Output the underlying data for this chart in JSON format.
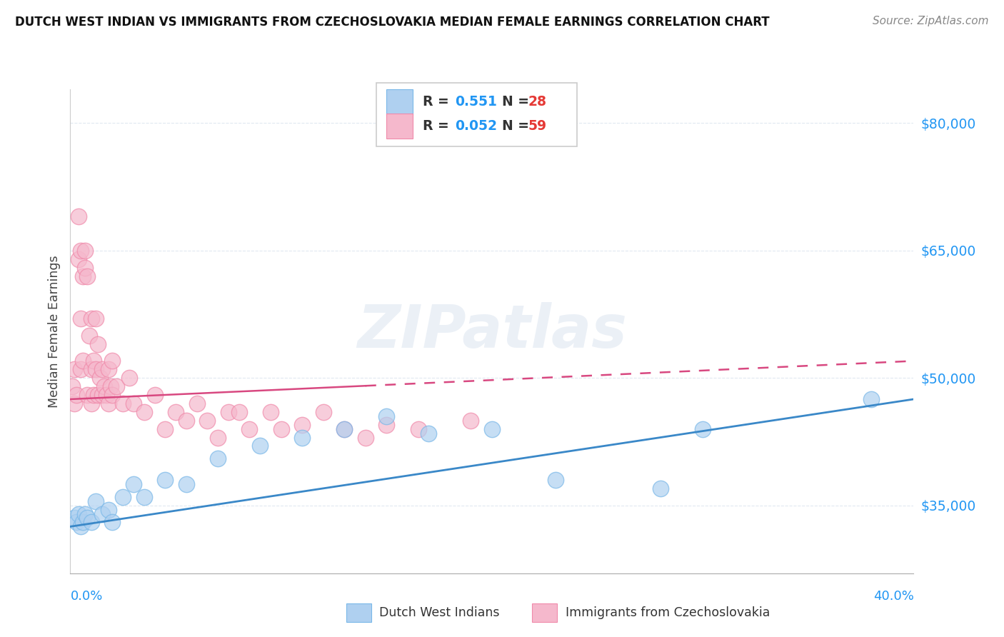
{
  "title": "DUTCH WEST INDIAN VS IMMIGRANTS FROM CZECHOSLOVAKIA MEDIAN FEMALE EARNINGS CORRELATION CHART",
  "source": "Source: ZipAtlas.com",
  "ylabel": "Median Female Earnings",
  "xmin": 0.0,
  "xmax": 40.0,
  "ymin": 27000,
  "ymax": 84000,
  "yticks": [
    35000,
    50000,
    65000,
    80000
  ],
  "ytick_labels": [
    "$35,000",
    "$50,000",
    "$65,000",
    "$80,000"
  ],
  "grid_color": "#e0e8f0",
  "blue_fill": "#afd0f0",
  "pink_fill": "#f5b8cc",
  "blue_edge": "#7ab8e8",
  "pink_edge": "#f08aaa",
  "blue_line_color": "#3a88c8",
  "pink_line_color": "#d84880",
  "blue_R": 0.551,
  "blue_N": 28,
  "pink_R": 0.052,
  "pink_N": 59,
  "legend_label_blue": "Dutch West Indians",
  "legend_label_pink": "Immigrants from Czechoslovakia",
  "watermark": "ZIPatlas",
  "blue_trend_x0": 0.0,
  "blue_trend_y0": 32500,
  "blue_trend_x1": 40.0,
  "blue_trend_y1": 47500,
  "pink_trend_x0": 0.0,
  "pink_trend_y0": 47500,
  "pink_trend_x1": 40.0,
  "pink_trend_y1": 52000,
  "pink_dash_start_x": 14.0,
  "blue_scatter_x": [
    0.2,
    0.3,
    0.4,
    0.5,
    0.6,
    0.7,
    0.8,
    1.0,
    1.2,
    1.5,
    1.8,
    2.0,
    2.5,
    3.0,
    3.5,
    4.5,
    5.5,
    7.0,
    9.0,
    11.0,
    13.0,
    15.0,
    17.0,
    20.0,
    23.0,
    28.0,
    30.0,
    38.0
  ],
  "blue_scatter_y": [
    33500,
    33000,
    34000,
    32500,
    33000,
    34000,
    33500,
    33000,
    35500,
    34000,
    34500,
    33000,
    36000,
    37500,
    36000,
    38000,
    37500,
    40500,
    42000,
    43000,
    44000,
    45500,
    43500,
    44000,
    38000,
    37000,
    44000,
    47500
  ],
  "pink_scatter_x": [
    0.1,
    0.2,
    0.2,
    0.3,
    0.4,
    0.4,
    0.5,
    0.5,
    0.5,
    0.6,
    0.6,
    0.7,
    0.7,
    0.8,
    0.8,
    0.9,
    1.0,
    1.0,
    1.0,
    1.1,
    1.1,
    1.2,
    1.2,
    1.3,
    1.3,
    1.4,
    1.5,
    1.5,
    1.6,
    1.7,
    1.8,
    1.8,
    1.9,
    2.0,
    2.0,
    2.2,
    2.5,
    2.8,
    3.0,
    3.5,
    4.0,
    4.5,
    5.0,
    5.5,
    6.0,
    6.5,
    7.0,
    7.5,
    8.0,
    8.5,
    9.5,
    10.0,
    11.0,
    12.0,
    13.0,
    14.0,
    15.0,
    16.5,
    19.0
  ],
  "pink_scatter_y": [
    49000,
    47000,
    51000,
    48000,
    64000,
    69000,
    51000,
    57000,
    65000,
    52000,
    62000,
    63000,
    65000,
    48000,
    62000,
    55000,
    47000,
    51000,
    57000,
    48000,
    52000,
    51000,
    57000,
    48000,
    54000,
    50000,
    48000,
    51000,
    49000,
    48000,
    47000,
    51000,
    49000,
    48000,
    52000,
    49000,
    47000,
    50000,
    47000,
    46000,
    48000,
    44000,
    46000,
    45000,
    47000,
    45000,
    43000,
    46000,
    46000,
    44000,
    46000,
    44000,
    44500,
    46000,
    44000,
    43000,
    44500,
    44000,
    45000
  ]
}
